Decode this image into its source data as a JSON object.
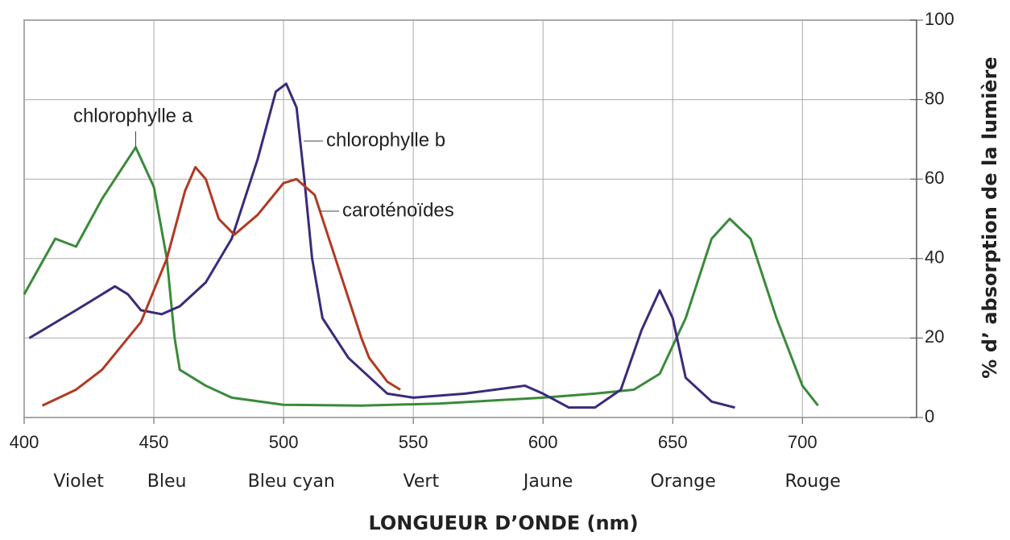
{
  "chart_data": {
    "type": "line",
    "x_label": "LONGUEUR D’ONDE (nm)",
    "y_label": "% d’ absorption de la lumière",
    "xlim": [
      400,
      744
    ],
    "xticks": [
      400,
      450,
      500,
      550,
      600,
      650,
      700
    ],
    "ylim": [
      0,
      100
    ],
    "yticks": [
      0,
      20,
      40,
      60,
      80,
      100
    ],
    "y_axis_side": "right",
    "grid": true,
    "bands": [
      {
        "label": "Violet",
        "x": 421
      },
      {
        "label": "Bleu",
        "x": 455
      },
      {
        "label": "Bleu cyan",
        "x": 503
      },
      {
        "label": "Vert",
        "x": 553
      },
      {
        "label": "Jaune",
        "x": 602
      },
      {
        "label": "Orange",
        "x": 654
      },
      {
        "label": "Rouge",
        "x": 704
      }
    ],
    "series": [
      {
        "name": "chlorophylle a",
        "color": "#3a8a3a",
        "x": [
          400,
          412,
          420,
          430,
          443,
          450,
          455,
          458,
          460,
          470,
          480,
          500,
          530,
          560,
          600,
          620,
          635,
          645,
          655,
          665,
          672,
          680,
          690,
          700,
          706
        ],
        "values": [
          31,
          45,
          43,
          55,
          68,
          58,
          40,
          20,
          12,
          8,
          5,
          3.2,
          3,
          3.5,
          5,
          6,
          7,
          11,
          25,
          45,
          50,
          45,
          25,
          8,
          3
        ]
      },
      {
        "name": "chlorophylle b",
        "color": "#3b2a7a",
        "x": [
          402,
          420,
          435,
          440,
          445,
          453,
          460,
          470,
          480,
          490,
          497,
          501,
          505,
          508,
          511,
          515,
          525,
          540,
          550,
          570,
          593,
          600,
          610,
          620,
          630,
          638,
          645,
          650,
          655,
          665,
          674
        ],
        "values": [
          20,
          27,
          33,
          31,
          27,
          26,
          28,
          34,
          45,
          65,
          82,
          84,
          78,
          60,
          40,
          25,
          15,
          6,
          5,
          6,
          8,
          6,
          2.5,
          2.5,
          7,
          22,
          32,
          25,
          10,
          4,
          2.5
        ]
      },
      {
        "name": "caroténoïdes",
        "color": "#b03a22",
        "x": [
          407,
          420,
          430,
          445,
          455,
          462,
          466,
          470,
          475,
          481,
          490,
          500,
          505,
          512,
          520,
          530,
          533,
          540,
          545
        ],
        "values": [
          3,
          7,
          12,
          24,
          40,
          57,
          63,
          60,
          50,
          46,
          51,
          59,
          60,
          56,
          40,
          20,
          15,
          9,
          7
        ]
      }
    ]
  }
}
